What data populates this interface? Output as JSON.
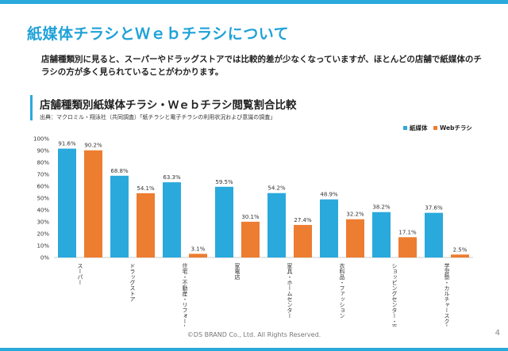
{
  "slide": {
    "title": "紙媒体チラシとＷｅｂチラシについて",
    "lead": "店舗種類別に見ると、スーパーやドラッグストアでは比較的差が少なくなっていますが、ほとんどの店舗で紙媒体のチラシの方が多く見られていることがわかります。",
    "chart_title": "店舗種類別紙媒体チラシ・Ｗｅｂチラシ閲覧割合比較",
    "source": "出典：マクロミル・翔泳社（共同調査）「紙チラシと電子チラシの利用状況および意識の調査」",
    "copyright": "©DS BRAND Co., Ltd. All Rights Reserved.",
    "page_number": "4"
  },
  "colors": {
    "accent": "#2aa9dd",
    "paper": "#2aa9dd",
    "web": "#ed7d31"
  },
  "chart_data": {
    "type": "bar",
    "categories": [
      "スーパー",
      "ドラッグストア",
      "住宅・不動産・リフォーム",
      "家電店",
      "家具・ホームセンター",
      "衣料品・ファッション",
      "ショッピングセンター・百貨店",
      "学習塾・カルチャースクール"
    ],
    "series": [
      {
        "name": "紙媒体",
        "values": [
          91.6,
          68.8,
          63.3,
          59.5,
          54.2,
          48.9,
          38.2,
          37.6
        ],
        "labels": [
          "91.6%",
          "68.8%",
          "63.3%",
          "59.5%",
          "54.2%",
          "48.9%",
          "38.2%",
          "37.6%"
        ]
      },
      {
        "name": "Webチラシ",
        "values": [
          90.2,
          54.1,
          3.1,
          30.1,
          27.4,
          32.2,
          17.1,
          2.5
        ],
        "labels": [
          "90.2%",
          "54.1%",
          "3.1%",
          "30.1%",
          "27.4%",
          "32.2%",
          "17.1%",
          "2.5%"
        ]
      }
    ],
    "yticks": [
      "0%",
      "10%",
      "20%",
      "30%",
      "40%",
      "50%",
      "60%",
      "70%",
      "80%",
      "90%",
      "100%"
    ],
    "ylim": [
      0,
      100
    ],
    "grid": false,
    "legend": "top-right"
  }
}
